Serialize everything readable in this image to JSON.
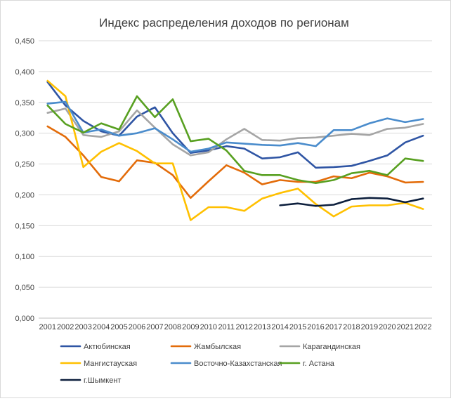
{
  "chart_data": {
    "type": "line",
    "title": "Индекс распределения доходов по регионам",
    "xlabel": "",
    "ylabel": "",
    "ylim": [
      0,
      0.45
    ],
    "y_ticks": [
      "0,000",
      "0,050",
      "0,100",
      "0,150",
      "0,200",
      "0,250",
      "0,300",
      "0,350",
      "0,400",
      "0,450"
    ],
    "categories": [
      "2001",
      "2002",
      "2003",
      "2004",
      "2005",
      "2006",
      "2007",
      "2008",
      "2009",
      "2010",
      "2011",
      "2012",
      "2013",
      "2014",
      "2015",
      "2016",
      "2017",
      "2018",
      "2019",
      "2020",
      "2021",
      "2022"
    ],
    "grid": true,
    "legend_position": "bottom",
    "series": [
      {
        "name": "Актюбинская",
        "color": "#2f55a4",
        "values": [
          0.383,
          0.345,
          0.32,
          0.303,
          0.296,
          0.327,
          0.342,
          0.3,
          0.268,
          0.272,
          0.279,
          0.275,
          0.259,
          0.261,
          0.269,
          0.244,
          0.245,
          0.247,
          0.255,
          0.264,
          0.285,
          0.296
        ]
      },
      {
        "name": "Жамбылская",
        "color": "#e36c0a",
        "values": [
          0.311,
          0.294,
          0.264,
          0.229,
          0.222,
          0.256,
          0.252,
          0.232,
          0.195,
          0.222,
          0.248,
          0.236,
          0.217,
          0.224,
          0.221,
          0.221,
          0.23,
          0.227,
          0.236,
          0.23,
          0.22,
          0.221
        ]
      },
      {
        "name": "Карагандинская",
        "color": "#a5a5a5",
        "values": [
          0.333,
          0.34,
          0.297,
          0.294,
          0.303,
          0.337,
          0.309,
          0.282,
          0.264,
          0.269,
          0.29,
          0.307,
          0.289,
          0.288,
          0.292,
          0.293,
          0.296,
          0.299,
          0.297,
          0.307,
          0.309,
          0.315
        ]
      },
      {
        "name": "Мангистауская",
        "color": "#ffc000",
        "values": [
          0.385,
          0.36,
          0.245,
          0.27,
          0.284,
          0.271,
          0.251,
          0.251,
          0.159,
          0.18,
          0.18,
          0.174,
          0.194,
          0.203,
          0.21,
          0.185,
          0.165,
          0.181,
          0.183,
          0.183,
          0.187,
          0.177
        ]
      },
      {
        "name": "Восточно-Казахстанская",
        "color": "#4a8ccc",
        "values": [
          0.348,
          0.351,
          0.301,
          0.306,
          0.296,
          0.3,
          0.308,
          0.29,
          0.27,
          0.275,
          0.285,
          0.283,
          0.281,
          0.28,
          0.284,
          0.279,
          0.305,
          0.305,
          0.316,
          0.324,
          0.318,
          0.323
        ]
      },
      {
        "name": "г. Астана",
        "color": "#58a021",
        "values": [
          0.345,
          0.315,
          0.301,
          0.316,
          0.306,
          0.36,
          0.326,
          0.355,
          0.287,
          0.291,
          0.272,
          0.239,
          0.232,
          0.232,
          0.224,
          0.219,
          0.224,
          0.235,
          0.239,
          0.232,
          0.259,
          0.255
        ]
      },
      {
        "name": "г.Шымкент",
        "color": "#0d1f3d",
        "values": [
          null,
          null,
          null,
          null,
          null,
          null,
          null,
          null,
          null,
          null,
          null,
          null,
          null,
          0.183,
          0.186,
          0.182,
          0.184,
          0.193,
          0.195,
          0.194,
          0.188,
          0.194
        ]
      }
    ]
  }
}
